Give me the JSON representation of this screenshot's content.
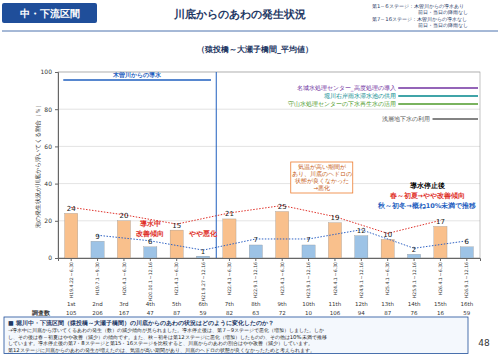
{
  "page": {
    "section": "中・下流区間",
    "legend_notes": [
      "第1～6ステージ：木曽川からの導水あり",
      "前日・当日の降雨なし",
      "第7～16ステージ：木曽川からの導水なし",
      "前日・当日の降雨なし"
    ],
    "page_number": 48
  },
  "chart_data": {
    "type": "bar",
    "title": "川底からのあわの発生状況",
    "subtitle": "（猿投橋～大瀬子橋間_平均値）",
    "ylabel": "泡の発生状況が川底から浮いてくる割合（％）",
    "categories": [
      "H19.4.22～6.30",
      "H19.7.1～9.30",
      "H20.4.1～6.30",
      "H20.10.1～12.16",
      "H21.4.1～6.30",
      "H21.9.27～12.16",
      "H22.4.1～6.30",
      "H22.9.1～12.16",
      "H23.4.1～6.30",
      "H23.9.1～12.16",
      "H24.4.1～6.30",
      "H24.9.1～12.16",
      "H25.4.1～6.30",
      "H25.9.1～12.16",
      "H26.4.1～6.30",
      "H26.9.1～12.16"
    ],
    "values": [
      24,
      9,
      20,
      6,
      15,
      1,
      21,
      7,
      25,
      7,
      19,
      12,
      10,
      2,
      17,
      6
    ],
    "colors": [
      "#f9c08c",
      "#9dc3e6",
      "#f9c08c",
      "#9dc3e6",
      "#f9c08c",
      "#9dc3e6",
      "#f9c08c",
      "#9dc3e6",
      "#f9c08c",
      "#9dc3e6",
      "#f9c08c",
      "#9dc3e6",
      "#f9c08c",
      "#9dc3e6",
      "#f9c08c",
      "#9dc3e6"
    ],
    "data_labels": true,
    "ylim": [
      0,
      100
    ],
    "yticks": [
      0,
      20,
      40,
      60,
      80,
      100
    ],
    "grid": true,
    "stages": [
      "1st",
      "2nd",
      "3rd",
      "4th",
      "5th",
      "6th",
      "7th",
      "8th",
      "9th",
      "10th",
      "11th",
      "12th",
      "13th",
      "14th",
      "15th",
      "16th"
    ],
    "survey": {
      "label": "調査数",
      "values": [
        105,
        206,
        167,
        47,
        87,
        59,
        82,
        63,
        72,
        10,
        106,
        94,
        87,
        76,
        16,
        59
      ]
    },
    "annotations": [
      [
        "木曽川からの導水"
      ],
      [
        "名城水処理センター_高度処理の導入"
      ],
      [
        "堀川右岸雨水滞水池の供用"
      ],
      [
        "守山水処理センターの下水再生水の活用"
      ],
      [
        "浅層地下水の利用"
      ],
      [
        "導水中",
        "改善傾向"
      ],
      [
        "やや悪化"
      ],
      [
        "気温が高い期間が",
        "あり、川底のヘドロの",
        "状態が良くなかった",
        "→悪化"
      ],
      [
        "導水停止後"
      ],
      [
        "春～初夏→やや改善傾向"
      ],
      [
        "秋～初冬→概ね10%未満で推移"
      ]
    ]
  },
  "summary": {
    "question": "■ 堀川中・下流区間（猿投橋～大瀬子橋間）の川底からのあわの状況はどのように変化したのか？",
    "lines": [
      "→導水中に川底から浮いてくるあわの発生（数）の減少傾向が見られました。導水停止後は、第7～9ステージで悪化（増加）しました。しか",
      "し、その後は春～初夏はやや改善（減少）の傾向です。また、秋～初冬は第12ステージに悪化（増加）したものの、その他は10%未満で推移",
      "しています。導水停止後の第7・8ステージと第15・16ステージを比較すると、川底からのあわの割合はやや改善（減少）しています。",
      "第12ステージに川底からのあわの発生が増えたのは、気温が高い期間があり、川底のヘドロの状態が良くなかったためと考えられます。"
    ]
  }
}
